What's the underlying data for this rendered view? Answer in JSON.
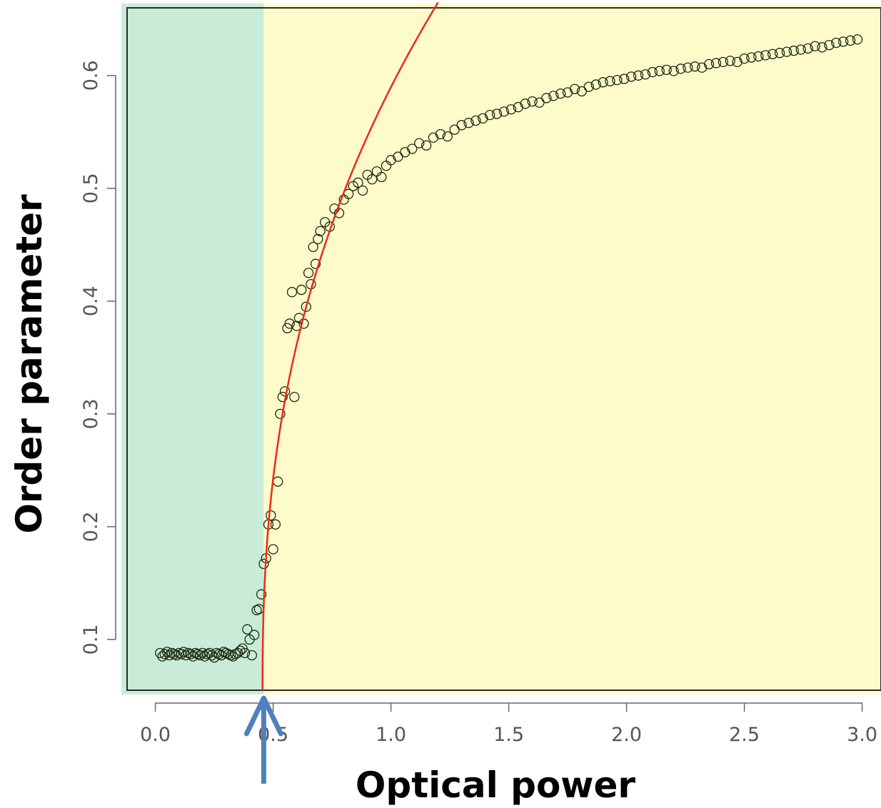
{
  "chart_data": {
    "type": "scatter",
    "xlabel": "Optical power",
    "ylabel": "Order parameter",
    "xlim": [
      -0.12,
      3.08
    ],
    "ylim": [
      0.055,
      0.66
    ],
    "x_ticks": [
      "0.0",
      "0.5",
      "1.0",
      "1.5",
      "2.0",
      "2.5",
      "3.0"
    ],
    "x_tick_values": [
      0.0,
      0.5,
      1.0,
      1.5,
      2.0,
      2.5,
      3.0
    ],
    "y_ticks": [
      "0.1",
      "0.2",
      "0.3",
      "0.4",
      "0.5",
      "0.6"
    ],
    "y_tick_values": [
      0.1,
      0.2,
      0.3,
      0.4,
      0.5,
      0.6
    ],
    "grid": false,
    "regions": [
      {
        "name": "below-threshold",
        "x_from": -0.12,
        "x_to": 0.46,
        "color": "#c9ecd8"
      },
      {
        "name": "above-threshold",
        "x_from": 0.46,
        "x_to": 3.08,
        "color": "#fefbcb"
      }
    ],
    "threshold_arrow_x": 0.46,
    "arrow_color": "#4f80bd",
    "fit_color": "#ee2a18",
    "marker_color": "#1e2a10",
    "series": [
      {
        "marker": "open-circle",
        "x": [
          0.02,
          0.03,
          0.04,
          0.05,
          0.06,
          0.07,
          0.08,
          0.09,
          0.1,
          0.11,
          0.12,
          0.13,
          0.14,
          0.15,
          0.16,
          0.17,
          0.18,
          0.19,
          0.2,
          0.21,
          0.22,
          0.23,
          0.24,
          0.25,
          0.26,
          0.27,
          0.28,
          0.29,
          0.3,
          0.31,
          0.32,
          0.33,
          0.34,
          0.35,
          0.36,
          0.37,
          0.38,
          0.39,
          0.4,
          0.41,
          0.42,
          0.43,
          0.44,
          0.45,
          0.46,
          0.47,
          0.48,
          0.49,
          0.5,
          0.51,
          0.52,
          0.53,
          0.54,
          0.55,
          0.56,
          0.57,
          0.58,
          0.59,
          0.6,
          0.61,
          0.62,
          0.63,
          0.64,
          0.65,
          0.66,
          0.67,
          0.68,
          0.69,
          0.7,
          0.72,
          0.74,
          0.76,
          0.78,
          0.8,
          0.82,
          0.84,
          0.86,
          0.88,
          0.9,
          0.92,
          0.94,
          0.96,
          0.98,
          1.0,
          1.03,
          1.06,
          1.09,
          1.12,
          1.15,
          1.18,
          1.21,
          1.24,
          1.27,
          1.3,
          1.33,
          1.36,
          1.39,
          1.42,
          1.45,
          1.48,
          1.51,
          1.54,
          1.57,
          1.6,
          1.63,
          1.66,
          1.69,
          1.72,
          1.75,
          1.78,
          1.81,
          1.84,
          1.87,
          1.9,
          1.93,
          1.96,
          1.99,
          2.02,
          2.05,
          2.08,
          2.11,
          2.14,
          2.17,
          2.2,
          2.23,
          2.26,
          2.29,
          2.32,
          2.35,
          2.38,
          2.41,
          2.44,
          2.47,
          2.5,
          2.53,
          2.56,
          2.59,
          2.62,
          2.65,
          2.68,
          2.71,
          2.74,
          2.77,
          2.8,
          2.83,
          2.86,
          2.89,
          2.92,
          2.95,
          2.98
        ],
        "y": [
          0.088,
          0.085,
          0.087,
          0.089,
          0.086,
          0.088,
          0.087,
          0.086,
          0.088,
          0.087,
          0.089,
          0.086,
          0.088,
          0.087,
          0.085,
          0.088,
          0.087,
          0.086,
          0.088,
          0.085,
          0.087,
          0.088,
          0.086,
          0.084,
          0.088,
          0.087,
          0.086,
          0.089,
          0.088,
          0.087,
          0.086,
          0.085,
          0.087,
          0.088,
          0.09,
          0.092,
          0.088,
          0.109,
          0.1,
          0.086,
          0.104,
          0.126,
          0.127,
          0.14,
          0.167,
          0.172,
          0.202,
          0.21,
          0.18,
          0.202,
          0.24,
          0.3,
          0.315,
          0.32,
          0.376,
          0.38,
          0.408,
          0.315,
          0.378,
          0.385,
          0.41,
          0.38,
          0.395,
          0.425,
          0.415,
          0.448,
          0.433,
          0.455,
          0.462,
          0.47,
          0.466,
          0.482,
          0.478,
          0.49,
          0.495,
          0.502,
          0.505,
          0.498,
          0.512,
          0.508,
          0.515,
          0.51,
          0.52,
          0.525,
          0.528,
          0.532,
          0.535,
          0.54,
          0.538,
          0.545,
          0.548,
          0.546,
          0.552,
          0.556,
          0.558,
          0.56,
          0.562,
          0.565,
          0.566,
          0.568,
          0.57,
          0.572,
          0.575,
          0.577,
          0.576,
          0.58,
          0.582,
          0.584,
          0.585,
          0.588,
          0.586,
          0.59,
          0.592,
          0.594,
          0.595,
          0.596,
          0.597,
          0.599,
          0.6,
          0.601,
          0.603,
          0.604,
          0.605,
          0.604,
          0.606,
          0.607,
          0.608,
          0.607,
          0.61,
          0.611,
          0.612,
          0.613,
          0.612,
          0.615,
          0.616,
          0.617,
          0.618,
          0.619,
          0.62,
          0.621,
          0.622,
          0.623,
          0.624,
          0.626,
          0.625,
          0.627,
          0.629,
          0.63,
          0.631,
          0.632
        ]
      }
    ],
    "fit": {
      "threshold": 0.455,
      "amplitude": 0.69,
      "exponent": 0.42,
      "x_max": 1.2
    }
  }
}
